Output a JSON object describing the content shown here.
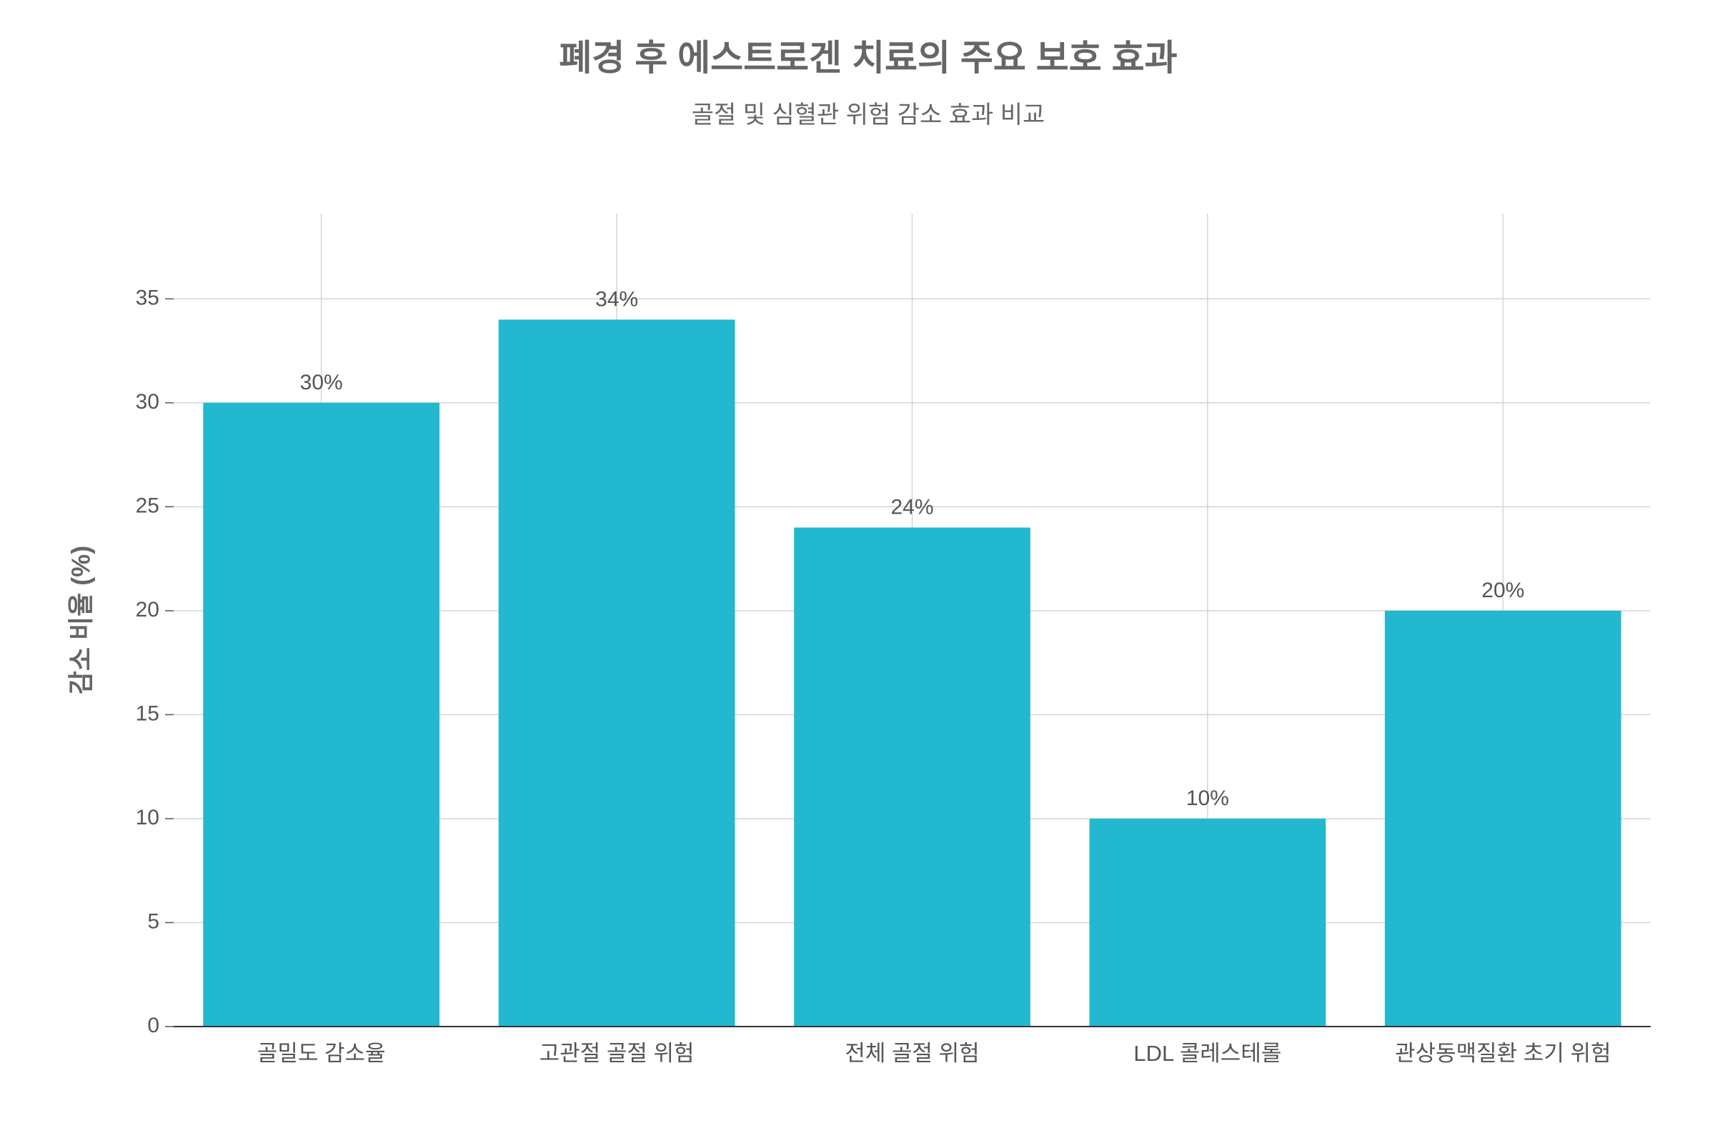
{
  "chart_data": {
    "type": "bar",
    "title": "폐경 후 에스트로겐 치료의 주요 보호 효과",
    "subtitle": "골절 및 심혈관 위험 감소 효과 비교",
    "y_label": "감소 비율 (%)",
    "categories": [
      "골밀도 감소율",
      "고관절 골절 위험",
      "전체 골절 위험",
      "LDL 콜레스테롤",
      "관상동맥질환 초기 위험"
    ],
    "values": [
      30,
      34,
      24,
      10,
      20
    ],
    "value_labels": [
      "30%",
      "34%",
      "24%",
      "10%",
      "20%"
    ],
    "color": "#22b8cf",
    "ylim": [
      0,
      39.1
    ],
    "yticks": [
      0,
      5,
      10,
      15,
      20,
      25,
      30,
      35
    ],
    "grid": true
  }
}
